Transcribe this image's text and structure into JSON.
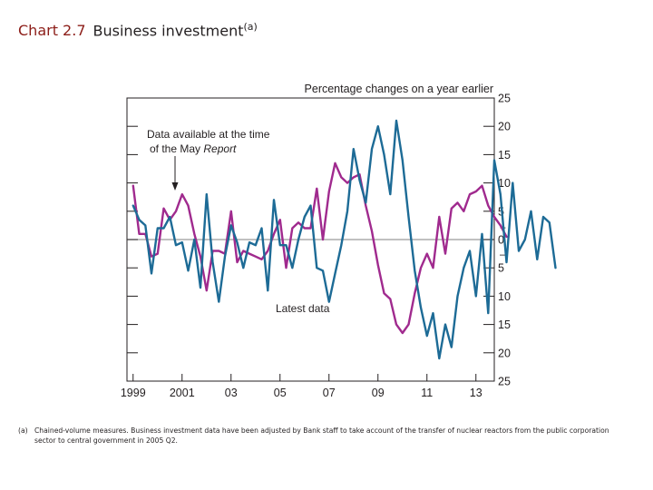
{
  "page": {
    "chart_number": "Chart 2.7",
    "chart_title": "Business investment",
    "title_note_marker": "(a)",
    "footnote_marker": "(a)",
    "footnote_text": "Chained-volume measures. Business investment data have been adjusted by Bank staff to take account of the transfer of nuclear reactors from the public corporation sector to central government in 2005 Q2."
  },
  "chart_data": {
    "type": "line",
    "units_label": "Percentage changes on a year earlier",
    "ylim": [
      -25,
      25
    ],
    "y_ticks": [
      25,
      20,
      15,
      10,
      5,
      0,
      5,
      10,
      15,
      20,
      25
    ],
    "y_ticks_signed": [
      25,
      20,
      15,
      10,
      5,
      0,
      -5,
      -10,
      -15,
      -20,
      -25
    ],
    "sign_markers": [
      "+",
      "–"
    ],
    "xlim": [
      1998.75,
      2013.75
    ],
    "x_ticks": [
      {
        "year": 1999,
        "label": "1999"
      },
      {
        "year": 2001,
        "label": "2001"
      },
      {
        "year": 2003,
        "label": "03"
      },
      {
        "year": 2005,
        "label": "05"
      },
      {
        "year": 2007,
        "label": "07"
      },
      {
        "year": 2009,
        "label": "09"
      },
      {
        "year": 2011,
        "label": "11"
      },
      {
        "year": 2013,
        "label": "13"
      }
    ],
    "annotations": [
      {
        "text_lines": [
          "Data available at the time",
          "of the May "
        ],
        "italic_word": "Report",
        "arrow_to_year": 2000.75
      },
      {
        "text_lines": [
          "Latest data"
        ],
        "italic_word": ""
      }
    ],
    "series": [
      {
        "name": "Latest data",
        "color": "#1d6b96",
        "start_year": 1999.0,
        "step": 0.25,
        "values": [
          6,
          3.5,
          2.5,
          -6,
          2,
          2,
          4,
          -1,
          -0.5,
          -5.5,
          0,
          -8.5,
          8,
          -4,
          -11,
          -3,
          2.5,
          -0.5,
          -5,
          -0.5,
          -1,
          2,
          -9,
          7,
          -1,
          -1,
          -5,
          0,
          4,
          6,
          -5,
          -5.5,
          -11,
          -6,
          -1,
          5,
          16,
          10.5,
          6.5,
          16,
          20,
          15,
          8,
          21,
          14,
          4,
          -5.5,
          -12,
          -17,
          -13,
          -21,
          -15,
          -19,
          -10,
          -5,
          -2,
          -10,
          1,
          -13,
          14,
          8,
          -4,
          10,
          -2,
          0,
          5,
          -3.5,
          4,
          3,
          -5
        ]
      },
      {
        "name": "Data available at the time of the May Report",
        "color": "#a02a8e",
        "start_year": 1999.0,
        "step": 0.25,
        "values": [
          9.5,
          1,
          1,
          -3,
          -2.5,
          5.5,
          3.5,
          5,
          8,
          6,
          1,
          -3,
          -9,
          -2,
          -2,
          -2.5,
          5,
          -4,
          -2,
          -2.5,
          -3,
          -3.5,
          -2,
          1,
          3.5,
          -5,
          2,
          3,
          2,
          2,
          9,
          0,
          8.5,
          13.5,
          11,
          10,
          11,
          11.5,
          6,
          1.5,
          -4.5,
          -9.5,
          -10.5,
          -15,
          -16.5,
          -15,
          -9.5,
          -5,
          -2.5,
          -5,
          4,
          -2.5,
          5.5,
          6.5,
          5,
          8,
          8.5,
          9.5,
          6,
          4,
          2.5,
          0.5
        ]
      }
    ]
  }
}
